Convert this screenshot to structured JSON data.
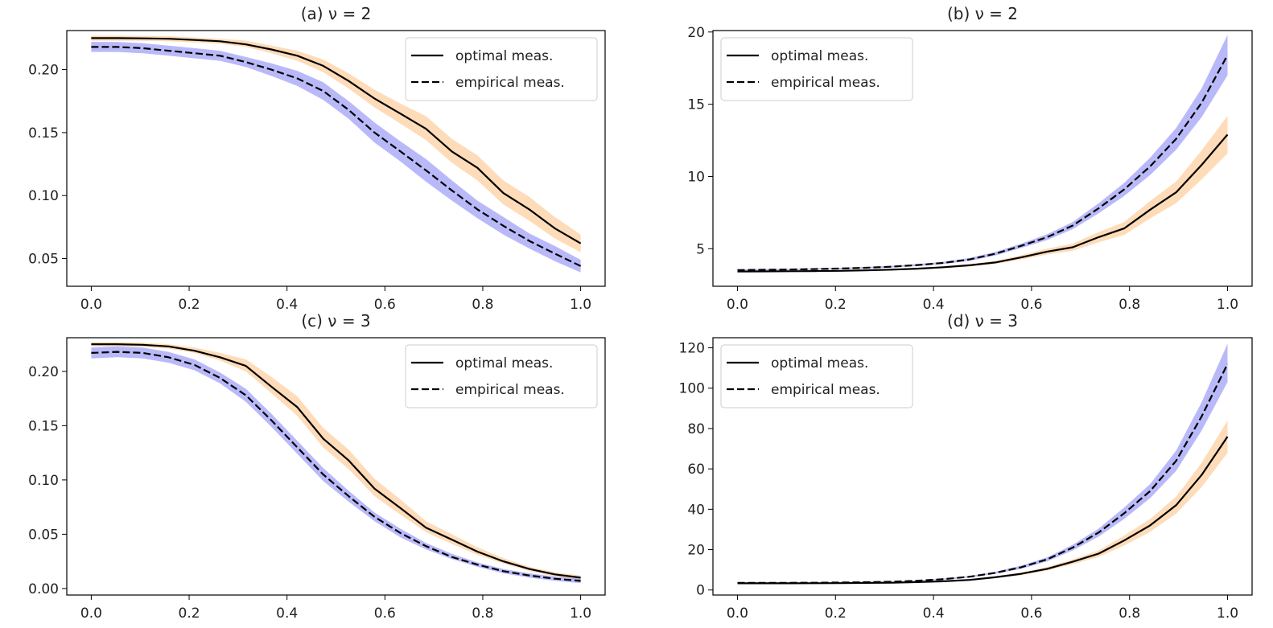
{
  "figure": {
    "colors": {
      "optimal_band": "#fdbf7f",
      "empirical_band": "#7f7ff5",
      "line": "#000000",
      "axes": "#000000",
      "text": "#222222",
      "legend_border": "#cccccc"
    },
    "legend_labels": [
      "optimal meas.",
      "empirical meas."
    ]
  },
  "chart_data": [
    {
      "id": "a",
      "type": "line",
      "title": "(a) ν = 2",
      "xlabel": "",
      "ylabel": "",
      "xlim": [
        -0.05,
        1.05
      ],
      "ylim": [
        0.028,
        0.231
      ],
      "xticks": [
        0.0,
        0.2,
        0.4,
        0.6,
        0.8,
        1.0
      ],
      "xtick_labels": [
        "0.0",
        "0.2",
        "0.4",
        "0.6",
        "0.8",
        "1.0"
      ],
      "yticks": [
        0.05,
        0.1,
        0.15,
        0.2
      ],
      "ytick_labels": [
        "0.05",
        "0.10",
        "0.15",
        "0.20"
      ],
      "legend_loc": "upper right",
      "x": [
        0.0,
        0.053,
        0.105,
        0.158,
        0.211,
        0.263,
        0.316,
        0.368,
        0.421,
        0.474,
        0.526,
        0.579,
        0.632,
        0.684,
        0.737,
        0.789,
        0.842,
        0.895,
        0.947,
        1.0
      ],
      "series": [
        {
          "name": "optimal meas.",
          "linestyle": "solid",
          "band": "orange",
          "values": [
            0.225,
            0.225,
            0.2248,
            0.2245,
            0.2235,
            0.2225,
            0.22,
            0.216,
            0.211,
            0.203,
            0.191,
            0.177,
            0.165,
            0.153,
            0.135,
            0.122,
            0.102,
            0.089,
            0.074,
            0.062
          ],
          "lower": [
            0.223,
            0.223,
            0.2228,
            0.2225,
            0.2215,
            0.2205,
            0.218,
            0.213,
            0.207,
            0.198,
            0.185,
            0.17,
            0.157,
            0.144,
            0.126,
            0.112,
            0.093,
            0.08,
            0.066,
            0.055
          ],
          "upper": [
            0.227,
            0.227,
            0.2268,
            0.2265,
            0.2255,
            0.2245,
            0.223,
            0.219,
            0.215,
            0.208,
            0.197,
            0.184,
            0.173,
            0.163,
            0.145,
            0.132,
            0.112,
            0.099,
            0.083,
            0.069
          ]
        },
        {
          "name": "empirical meas.",
          "linestyle": "dashed",
          "band": "blue",
          "values": [
            0.218,
            0.218,
            0.217,
            0.215,
            0.213,
            0.211,
            0.206,
            0.2,
            0.193,
            0.183,
            0.168,
            0.15,
            0.135,
            0.12,
            0.104,
            0.089,
            0.076,
            0.064,
            0.054,
            0.044
          ],
          "lower": [
            0.214,
            0.214,
            0.213,
            0.211,
            0.209,
            0.207,
            0.202,
            0.195,
            0.187,
            0.176,
            0.161,
            0.142,
            0.127,
            0.111,
            0.096,
            0.082,
            0.069,
            0.058,
            0.048,
            0.039
          ],
          "upper": [
            0.222,
            0.222,
            0.221,
            0.219,
            0.217,
            0.215,
            0.21,
            0.205,
            0.199,
            0.19,
            0.175,
            0.158,
            0.143,
            0.129,
            0.112,
            0.096,
            0.083,
            0.07,
            0.06,
            0.049
          ]
        }
      ]
    },
    {
      "id": "b",
      "type": "line",
      "title": "(b) ν = 2",
      "xlabel": "",
      "ylabel": "",
      "xlim": [
        -0.05,
        1.05
      ],
      "ylim": [
        2.4,
        20.1
      ],
      "xticks": [
        0.0,
        0.2,
        0.4,
        0.6,
        0.8,
        1.0
      ],
      "xtick_labels": [
        "0.0",
        "0.2",
        "0.4",
        "0.6",
        "0.8",
        "1.0"
      ],
      "yticks": [
        5,
        10,
        15,
        20
      ],
      "ytick_labels": [
        "5",
        "10",
        "15",
        "20"
      ],
      "legend_loc": "upper left",
      "x": [
        0.0,
        0.053,
        0.105,
        0.158,
        0.211,
        0.263,
        0.316,
        0.368,
        0.421,
        0.474,
        0.526,
        0.579,
        0.632,
        0.684,
        0.737,
        0.789,
        0.842,
        0.895,
        0.947,
        1.0
      ],
      "series": [
        {
          "name": "optimal meas.",
          "linestyle": "solid",
          "band": "orange",
          "values": [
            3.42,
            3.43,
            3.44,
            3.45,
            3.47,
            3.5,
            3.55,
            3.62,
            3.72,
            3.85,
            4.05,
            4.4,
            4.8,
            5.1,
            5.8,
            6.4,
            7.7,
            8.9,
            10.8,
            12.9
          ],
          "lower": [
            3.38,
            3.39,
            3.4,
            3.41,
            3.43,
            3.46,
            3.5,
            3.56,
            3.65,
            3.77,
            3.95,
            4.25,
            4.6,
            4.85,
            5.45,
            5.95,
            7.1,
            8.15,
            9.8,
            11.6
          ],
          "upper": [
            3.46,
            3.47,
            3.48,
            3.49,
            3.51,
            3.54,
            3.6,
            3.68,
            3.79,
            3.93,
            4.15,
            4.55,
            5.0,
            5.35,
            6.15,
            6.85,
            8.3,
            9.65,
            11.8,
            14.2
          ]
        },
        {
          "name": "empirical meas.",
          "linestyle": "dashed",
          "band": "blue",
          "values": [
            3.52,
            3.54,
            3.56,
            3.59,
            3.63,
            3.68,
            3.76,
            3.87,
            4.02,
            4.26,
            4.65,
            5.2,
            5.8,
            6.6,
            7.8,
            9.1,
            10.7,
            12.6,
            15.1,
            18.4
          ],
          "lower": [
            3.47,
            3.49,
            3.51,
            3.54,
            3.58,
            3.62,
            3.7,
            3.8,
            3.94,
            4.16,
            4.53,
            5.05,
            5.6,
            6.35,
            7.45,
            8.65,
            10.1,
            11.85,
            14.1,
            17.0
          ],
          "upper": [
            3.57,
            3.59,
            3.61,
            3.64,
            3.68,
            3.74,
            3.82,
            3.94,
            4.1,
            4.36,
            4.77,
            5.35,
            6.0,
            6.85,
            8.15,
            9.55,
            11.3,
            13.35,
            16.1,
            19.8
          ]
        }
      ]
    },
    {
      "id": "c",
      "type": "line",
      "title": "(c) ν = 3",
      "xlabel": "",
      "ylabel": "",
      "xlim": [
        -0.05,
        1.05
      ],
      "ylim": [
        -0.006,
        0.231
      ],
      "xticks": [
        0.0,
        0.2,
        0.4,
        0.6,
        0.8,
        1.0
      ],
      "xtick_labels": [
        "0.0",
        "0.2",
        "0.4",
        "0.6",
        "0.8",
        "1.0"
      ],
      "yticks": [
        0.0,
        0.05,
        0.1,
        0.15,
        0.2
      ],
      "ytick_labels": [
        "0.00",
        "0.05",
        "0.10",
        "0.15",
        "0.20"
      ],
      "legend_loc": "upper right",
      "x": [
        0.0,
        0.053,
        0.105,
        0.158,
        0.211,
        0.263,
        0.316,
        0.368,
        0.421,
        0.474,
        0.526,
        0.579,
        0.632,
        0.684,
        0.737,
        0.789,
        0.842,
        0.895,
        0.947,
        1.0
      ],
      "series": [
        {
          "name": "optimal meas.",
          "linestyle": "solid",
          "band": "orange",
          "values": [
            0.225,
            0.225,
            0.2245,
            0.223,
            0.219,
            0.213,
            0.205,
            0.186,
            0.167,
            0.138,
            0.118,
            0.092,
            0.074,
            0.056,
            0.045,
            0.034,
            0.025,
            0.018,
            0.013,
            0.01
          ],
          "lower": [
            0.223,
            0.223,
            0.2225,
            0.221,
            0.217,
            0.21,
            0.2,
            0.18,
            0.159,
            0.13,
            0.11,
            0.085,
            0.068,
            0.052,
            0.041,
            0.031,
            0.023,
            0.016,
            0.011,
            0.008
          ],
          "upper": [
            0.227,
            0.227,
            0.2265,
            0.225,
            0.222,
            0.217,
            0.211,
            0.195,
            0.177,
            0.148,
            0.128,
            0.101,
            0.082,
            0.062,
            0.05,
            0.038,
            0.028,
            0.02,
            0.015,
            0.012
          ]
        },
        {
          "name": "empirical meas.",
          "linestyle": "dashed",
          "band": "blue",
          "values": [
            0.217,
            0.218,
            0.217,
            0.213,
            0.206,
            0.194,
            0.178,
            0.155,
            0.13,
            0.105,
            0.085,
            0.066,
            0.051,
            0.039,
            0.029,
            0.022,
            0.016,
            0.012,
            0.009,
            0.007
          ],
          "lower": [
            0.212,
            0.213,
            0.212,
            0.208,
            0.201,
            0.189,
            0.172,
            0.149,
            0.124,
            0.099,
            0.08,
            0.062,
            0.047,
            0.036,
            0.027,
            0.02,
            0.014,
            0.01,
            0.007,
            0.005
          ],
          "upper": [
            0.222,
            0.223,
            0.222,
            0.218,
            0.211,
            0.199,
            0.184,
            0.161,
            0.136,
            0.111,
            0.09,
            0.07,
            0.055,
            0.042,
            0.032,
            0.024,
            0.018,
            0.014,
            0.011,
            0.009
          ]
        }
      ]
    },
    {
      "id": "d",
      "type": "line",
      "title": "(d) ν = 3",
      "xlabel": "",
      "ylabel": "",
      "xlim": [
        -0.05,
        1.05
      ],
      "ylim": [
        -2.5,
        125
      ],
      "xticks": [
        0.0,
        0.2,
        0.4,
        0.6,
        0.8,
        1.0
      ],
      "xtick_labels": [
        "0.0",
        "0.2",
        "0.4",
        "0.6",
        "0.8",
        "1.0"
      ],
      "yticks": [
        0,
        20,
        40,
        60,
        80,
        100,
        120
      ],
      "ytick_labels": [
        "0",
        "20",
        "40",
        "60",
        "80",
        "100",
        "120"
      ],
      "legend_loc": "upper left",
      "x": [
        0.0,
        0.053,
        0.105,
        0.158,
        0.211,
        0.263,
        0.316,
        0.368,
        0.421,
        0.474,
        0.526,
        0.579,
        0.632,
        0.684,
        0.737,
        0.789,
        0.842,
        0.895,
        0.947,
        1.0
      ],
      "series": [
        {
          "name": "optimal meas.",
          "linestyle": "solid",
          "band": "orange",
          "values": [
            3.3,
            3.3,
            3.3,
            3.35,
            3.4,
            3.5,
            3.6,
            3.9,
            4.3,
            5.0,
            6.3,
            8.0,
            10.5,
            14.0,
            18.0,
            24.5,
            32.0,
            42.0,
            57.0,
            76.0
          ],
          "lower": [
            3.2,
            3.2,
            3.2,
            3.25,
            3.3,
            3.4,
            3.5,
            3.75,
            4.1,
            4.7,
            5.9,
            7.4,
            9.6,
            12.8,
            16.4,
            22.0,
            28.8,
            37.8,
            51.0,
            68.0
          ],
          "upper": [
            3.4,
            3.4,
            3.4,
            3.45,
            3.5,
            3.6,
            3.7,
            4.05,
            4.5,
            5.3,
            6.7,
            8.6,
            11.4,
            15.2,
            19.6,
            27.0,
            35.2,
            46.2,
            63.0,
            84.0
          ]
        },
        {
          "name": "empirical meas.",
          "linestyle": "dashed",
          "band": "blue",
          "values": [
            3.5,
            3.5,
            3.55,
            3.6,
            3.7,
            3.85,
            4.1,
            4.6,
            5.4,
            6.6,
            8.5,
            11.3,
            15.2,
            21.0,
            28.5,
            38.0,
            49.0,
            64.0,
            86.0,
            112.0
          ],
          "lower": [
            3.4,
            3.4,
            3.45,
            3.5,
            3.6,
            3.75,
            3.95,
            4.4,
            5.1,
            6.2,
            8.0,
            10.5,
            14.2,
            19.6,
            26.5,
            35.2,
            45.5,
            59.0,
            79.0,
            103.0
          ],
          "upper": [
            3.6,
            3.6,
            3.65,
            3.7,
            3.8,
            3.95,
            4.25,
            4.8,
            5.7,
            7.0,
            9.0,
            12.1,
            16.2,
            22.4,
            30.5,
            40.8,
            52.5,
            69.0,
            93.0,
            122.0
          ]
        }
      ]
    }
  ]
}
